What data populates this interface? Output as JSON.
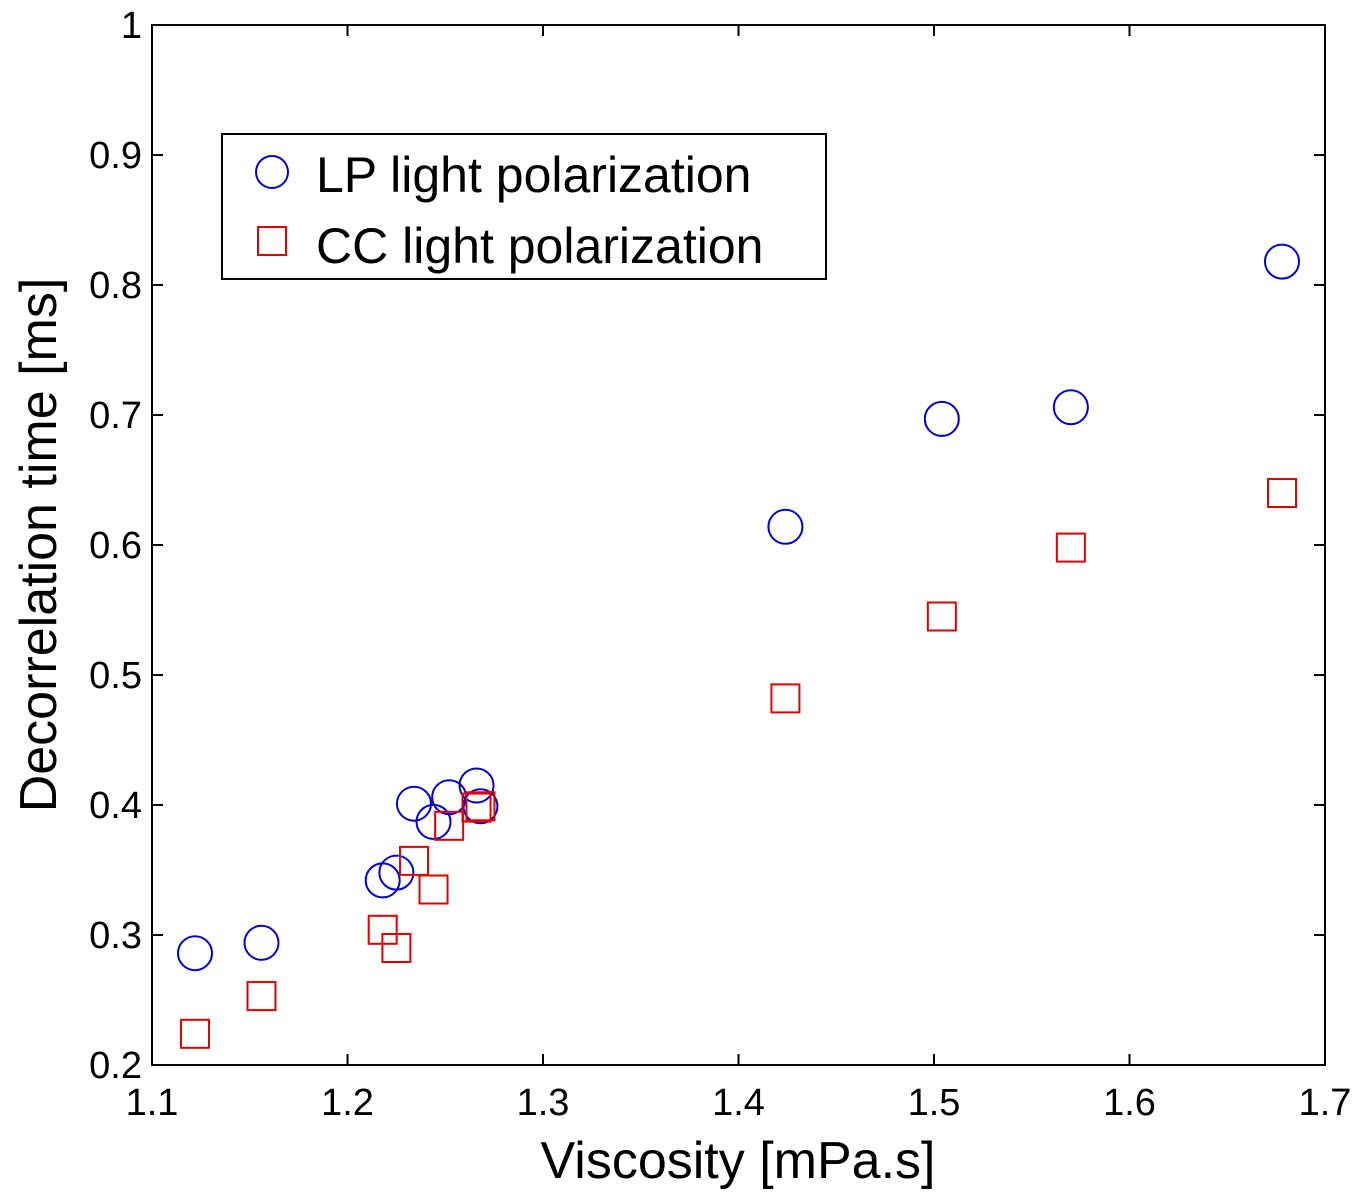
{
  "chart_data": {
    "type": "scatter",
    "title": "",
    "xlabel": "Viscosity [mPa.s]",
    "ylabel": "Decorrelation time [ms]",
    "xlim": [
      1.1,
      1.7
    ],
    "ylim": [
      0.2,
      1.0
    ],
    "xticks": [
      1.1,
      1.2,
      1.3,
      1.4,
      1.5,
      1.6,
      1.7
    ],
    "xtick_labels": [
      "1.1",
      "1.2",
      "1.3",
      "1.4",
      "1.5",
      "1.6",
      "1.7"
    ],
    "yticks": [
      0.2,
      0.3,
      0.4,
      0.5,
      0.6,
      0.7,
      0.8,
      0.9,
      1.0
    ],
    "ytick_labels": [
      "0.2",
      "0.3",
      "0.4",
      "0.5",
      "0.6",
      "0.7",
      "0.8",
      "0.9",
      "1"
    ],
    "grid": false,
    "legend_position": "top-left",
    "series": [
      {
        "name": "LP light polarization",
        "marker": "circle",
        "color": "#0000cc",
        "x": [
          1.122,
          1.156,
          1.218,
          1.225,
          1.234,
          1.244,
          1.252,
          1.266,
          1.268,
          1.424,
          1.504,
          1.57,
          1.678
        ],
        "y": [
          0.286,
          0.294,
          0.342,
          0.348,
          0.401,
          0.387,
          0.406,
          0.415,
          0.399,
          0.614,
          0.697,
          0.706,
          0.818
        ]
      },
      {
        "name": "CC light polarization",
        "marker": "square",
        "color": "#dd0000",
        "x": [
          1.122,
          1.156,
          1.218,
          1.225,
          1.234,
          1.244,
          1.252,
          1.266,
          1.268,
          1.424,
          1.504,
          1.57,
          1.678
        ],
        "y": [
          0.224,
          0.253,
          0.304,
          0.29,
          0.357,
          0.335,
          0.384,
          0.398,
          0.399,
          0.482,
          0.545,
          0.598,
          0.64
        ]
      }
    ]
  }
}
